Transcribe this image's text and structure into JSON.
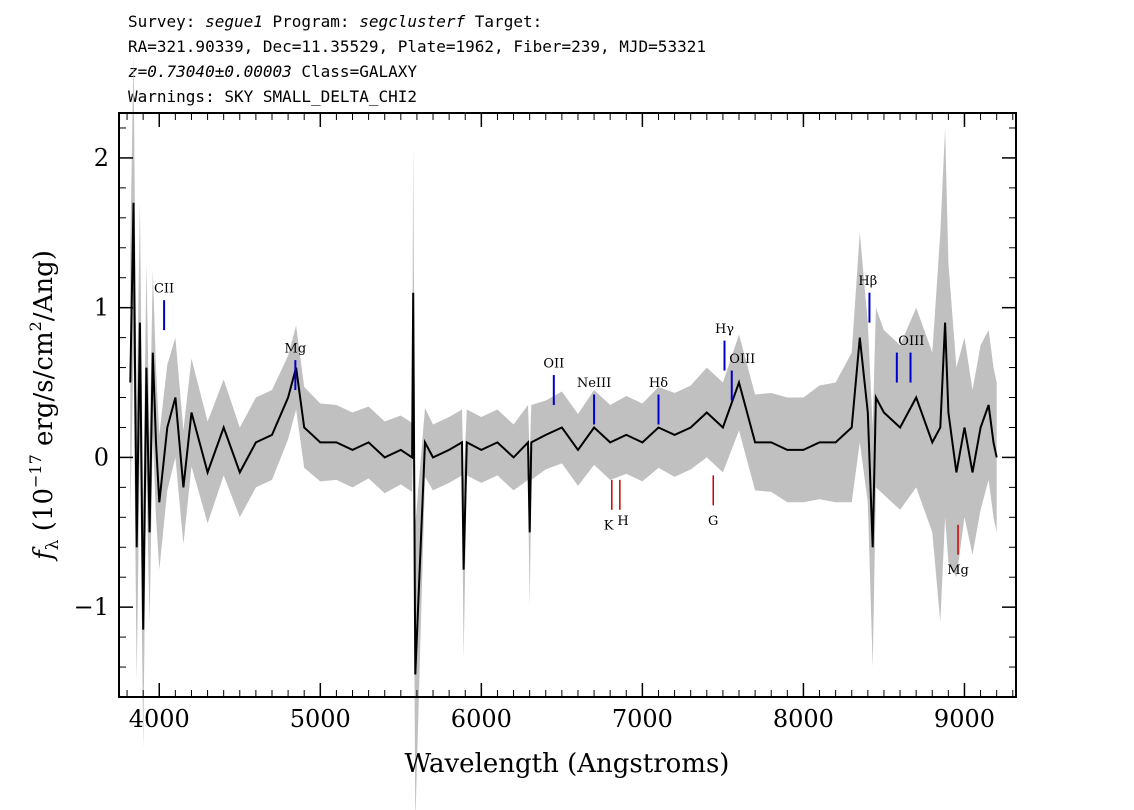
{
  "header": {
    "line1": {
      "survey_label": "Survey: ",
      "survey": "segue1",
      "program_label": " Program: ",
      "program": "segclusterf",
      "target_label": " Target:"
    },
    "line2": "RA=321.90339, Dec=11.35529, Plate=1962, Fiber=239, MJD=53321",
    "line3": {
      "redshift": "z=0.73040±0.00003",
      "class": " Class=GALAXY"
    },
    "line4": "Warnings: SKY SMALL_DELTA_CHI2"
  },
  "chart_data": {
    "type": "line",
    "xlabel": "Wavelength (Angstroms)",
    "ylabel": "f_λ (10^-17 erg/s/cm²/Ang)",
    "ylabel_parts": {
      "f": "f",
      "sub": "λ",
      "pre": " (10",
      "exp": "−17",
      "mid": " erg/s/cm",
      "exp2": "2",
      "post": "/Ang)"
    },
    "xlim": [
      3750,
      9320
    ],
    "ylim": [
      -1.6,
      2.3
    ],
    "x_ticks": [
      {
        "value": 4000,
        "label": "4000"
      },
      {
        "value": 5000,
        "label": "5000"
      },
      {
        "value": 6000,
        "label": "6000"
      },
      {
        "value": 7000,
        "label": "7000"
      },
      {
        "value": 8000,
        "label": "8000"
      },
      {
        "value": 9000,
        "label": "9000"
      }
    ],
    "y_ticks": [
      {
        "value": -1,
        "label": "−1"
      },
      {
        "value": 0,
        "label": "0"
      },
      {
        "value": 1,
        "label": "1"
      },
      {
        "value": 2,
        "label": "2"
      }
    ],
    "colors": {
      "flux": "#000000",
      "error": "#c0c0c0",
      "emission": "#0000cc",
      "absorption": "#cc0000"
    },
    "series": [
      {
        "x": [
          3820,
          3840,
          3860,
          3880,
          3900,
          3920,
          3940,
          3960,
          3980,
          4000,
          4050,
          4100,
          4150,
          4200,
          4300,
          4400,
          4500,
          4600,
          4700,
          4800,
          4850,
          4900,
          5000,
          5100,
          5200,
          5300,
          5400,
          5500,
          5570,
          5577,
          5590,
          5650,
          5700,
          5800,
          5880,
          5890,
          5910,
          6000,
          6100,
          6200,
          6290,
          6300,
          6310,
          6400,
          6500,
          6600,
          6700,
          6800,
          6900,
          7000,
          7100,
          7200,
          7300,
          7400,
          7500,
          7600,
          7700,
          7800,
          7900,
          8000,
          8100,
          8200,
          8300,
          8350,
          8400,
          8430,
          8450,
          8500,
          8600,
          8700,
          8800,
          8850,
          8880,
          8900,
          8950,
          9000,
          9050,
          9100,
          9150,
          9180,
          9200
        ],
        "y": [
          0.5,
          1.7,
          -0.6,
          0.9,
          -1.15,
          0.6,
          -0.5,
          0.7,
          0.1,
          -0.3,
          0.2,
          0.4,
          -0.2,
          0.3,
          -0.1,
          0.2,
          -0.1,
          0.1,
          0.15,
          0.4,
          0.6,
          0.2,
          0.1,
          0.1,
          0.05,
          0.1,
          0.0,
          0.05,
          0.0,
          1.1,
          -1.45,
          0.1,
          0.0,
          0.05,
          0.1,
          -0.75,
          0.1,
          0.05,
          0.1,
          0.0,
          0.1,
          -0.5,
          0.1,
          0.15,
          0.2,
          0.05,
          0.2,
          0.1,
          0.15,
          0.1,
          0.2,
          0.15,
          0.2,
          0.3,
          0.2,
          0.5,
          0.1,
          0.1,
          0.05,
          0.05,
          0.1,
          0.1,
          0.2,
          0.8,
          0.3,
          -0.6,
          0.4,
          0.3,
          0.2,
          0.4,
          0.1,
          0.2,
          0.9,
          0.3,
          -0.1,
          0.2,
          -0.1,
          0.2,
          0.35,
          0.1,
          0.0
        ],
        "err": [
          0.9,
          1.0,
          0.9,
          0.8,
          0.8,
          0.7,
          0.6,
          0.55,
          0.5,
          0.45,
          0.42,
          0.4,
          0.38,
          0.36,
          0.34,
          0.32,
          0.3,
          0.3,
          0.3,
          0.28,
          0.28,
          0.27,
          0.26,
          0.25,
          0.25,
          0.24,
          0.24,
          0.23,
          0.23,
          1.0,
          1.0,
          0.23,
          0.22,
          0.22,
          0.22,
          0.6,
          0.22,
          0.22,
          0.22,
          0.22,
          0.25,
          0.5,
          0.25,
          0.23,
          0.24,
          0.24,
          0.25,
          0.25,
          0.26,
          0.26,
          0.27,
          0.28,
          0.28,
          0.3,
          0.3,
          0.32,
          0.32,
          0.33,
          0.35,
          0.35,
          0.38,
          0.4,
          0.5,
          0.7,
          0.6,
          0.8,
          0.6,
          0.55,
          0.55,
          0.6,
          0.6,
          1.3,
          1.3,
          1.0,
          0.7,
          0.6,
          0.55,
          0.55,
          0.5,
          0.5,
          0.5
        ]
      }
    ],
    "emission_lines": [
      {
        "name": "CII",
        "x": 4030,
        "y0": 0.85,
        "y1": 1.05
      },
      {
        "name": "Mg",
        "x": 4845,
        "y0": 0.45,
        "y1": 0.65
      },
      {
        "name": "OII",
        "x": 6450,
        "y0": 0.35,
        "y1": 0.55
      },
      {
        "name": "NeIII",
        "x": 6700,
        "y0": 0.22,
        "y1": 0.42
      },
      {
        "name": "Hδ",
        "x": 7100,
        "y0": 0.22,
        "y1": 0.42
      },
      {
        "name": "Hγ",
        "x": 7510,
        "y0": 0.58,
        "y1": 0.78
      },
      {
        "name": "OIII",
        "x": 7555,
        "y0": 0.38,
        "y1": 0.58
      },
      {
        "name": "Hβ",
        "x": 8410,
        "y0": 0.9,
        "y1": 1.1
      },
      {
        "name": "OIII",
        "x": 8580,
        "y0": 0.5,
        "y1": 0.7
      },
      {
        "name": "OIII",
        "x": 8665,
        "y0": 0.5,
        "y1": 0.7
      }
    ],
    "emission_labels": [
      {
        "text": "CII",
        "x": 4030,
        "y": 1.1
      },
      {
        "text": "Mg",
        "x": 4845,
        "y": 0.7
      },
      {
        "text": "OII",
        "x": 6450,
        "y": 0.6
      },
      {
        "text": "NeIII",
        "x": 6700,
        "y": 0.47
      },
      {
        "text": "Hδ",
        "x": 7100,
        "y": 0.47
      },
      {
        "text": "Hγ",
        "x": 7510,
        "y": 0.83
      },
      {
        "text": "OIII",
        "x": 7620,
        "y": 0.63
      },
      {
        "text": "Hβ",
        "x": 8400,
        "y": 1.15
      },
      {
        "text": "OIII",
        "x": 8670,
        "y": 0.75
      }
    ],
    "absorption_lines": [
      {
        "name": "K",
        "x": 6810,
        "y0": -0.15,
        "y1": -0.35
      },
      {
        "name": "H",
        "x": 6860,
        "y0": -0.15,
        "y1": -0.35
      },
      {
        "name": "G",
        "x": 7440,
        "y0": -0.12,
        "y1": -0.32
      },
      {
        "name": "Mg",
        "x": 8960,
        "y0": -0.45,
        "y1": -0.65
      }
    ],
    "absorption_labels": [
      {
        "text": "K",
        "x": 6790,
        "y": -0.48
      },
      {
        "text": "H",
        "x": 6880,
        "y": -0.45
      },
      {
        "text": "G",
        "x": 7440,
        "y": -0.45
      },
      {
        "text": "Mg",
        "x": 8960,
        "y": -0.78
      }
    ]
  }
}
